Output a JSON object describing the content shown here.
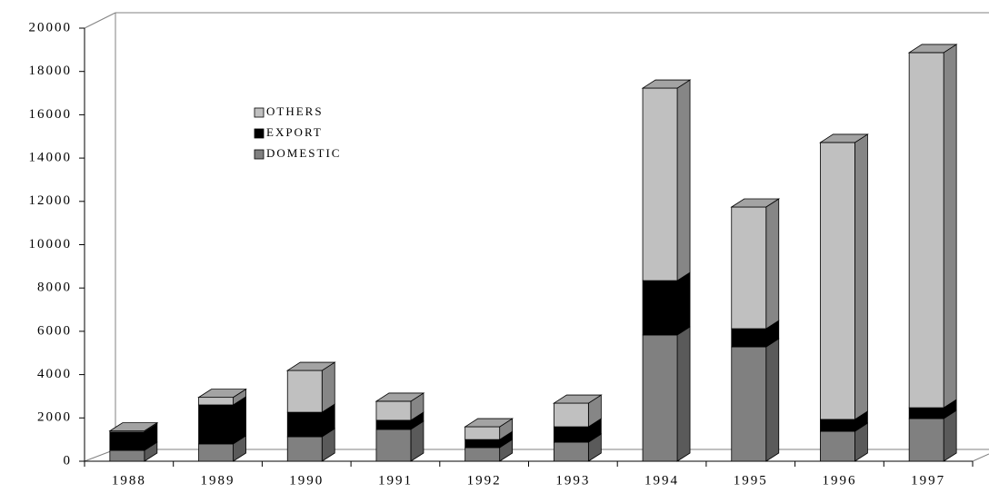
{
  "chart_data": {
    "type": "bar3d_stacked",
    "categories": [
      "1988",
      "1989",
      "1990",
      "1991",
      "1992",
      "1993",
      "1994",
      "1995",
      "1996",
      "1997"
    ],
    "series": [
      {
        "name": "DOMESTIC",
        "color": "#808080",
        "values": [
          500,
          800,
          1130,
          1470,
          630,
          880,
          5830,
          5280,
          1380,
          1970
        ]
      },
      {
        "name": "EXPORT",
        "color": "#000000",
        "values": [
          850,
          1800,
          1130,
          420,
          370,
          710,
          2510,
          840,
          550,
          500
        ]
      },
      {
        "name": "OTHERS",
        "color": "#c0c0c0",
        "values": [
          50,
          350,
          1930,
          880,
          590,
          1090,
          8890,
          5620,
          12790,
          16400
        ]
      }
    ],
    "ylim": [
      0,
      20000
    ],
    "yticks": [
      0,
      2000,
      4000,
      6000,
      8000,
      10000,
      12000,
      14000,
      16000,
      18000,
      20000
    ]
  }
}
